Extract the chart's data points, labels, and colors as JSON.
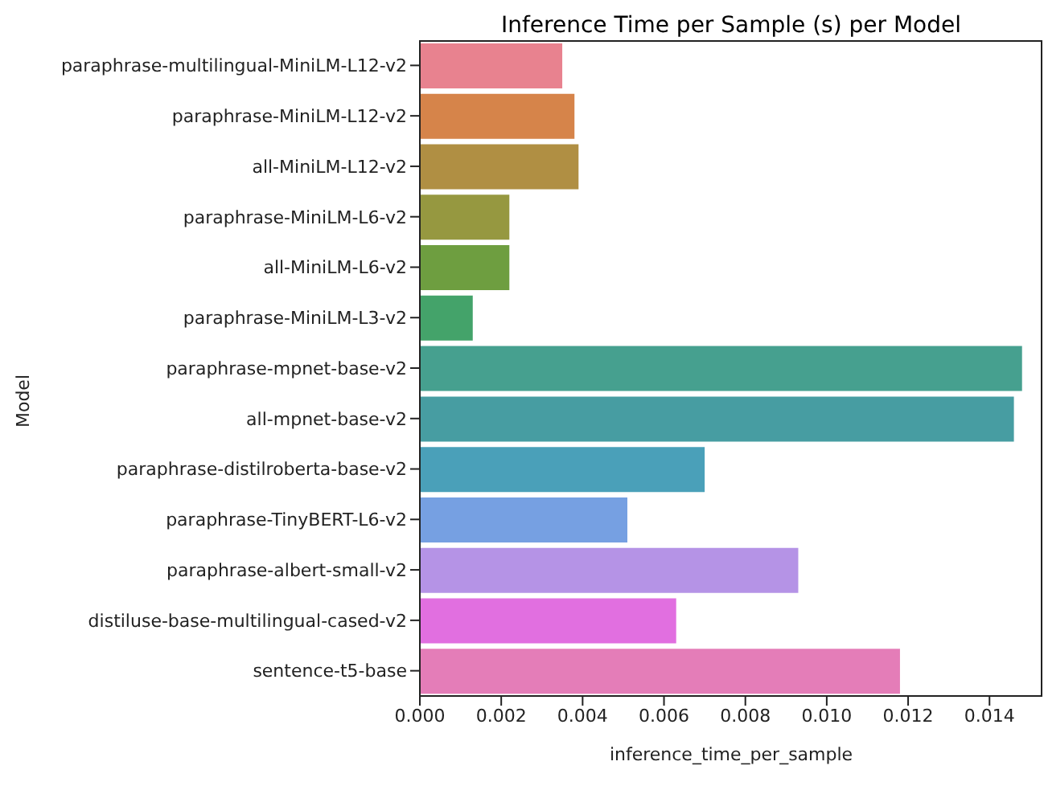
{
  "chart_data": {
    "type": "bar",
    "orientation": "horizontal",
    "title": "Inference Time per Sample (s) per Model",
    "xlabel": "inference_time_per_sample",
    "ylabel": "Model",
    "categories": [
      "paraphrase-multilingual-MiniLM-L12-v2",
      "paraphrase-MiniLM-L12-v2",
      "all-MiniLM-L12-v2",
      "paraphrase-MiniLM-L6-v2",
      "all-MiniLM-L6-v2",
      "paraphrase-MiniLM-L3-v2",
      "paraphrase-mpnet-base-v2",
      "all-mpnet-base-v2",
      "paraphrase-distilroberta-base-v2",
      "paraphrase-TinyBERT-L6-v2",
      "paraphrase-albert-small-v2",
      "distiluse-base-multilingual-cased-v2",
      "sentence-t5-base"
    ],
    "values": [
      0.0035,
      0.0038,
      0.0039,
      0.0022,
      0.0022,
      0.0013,
      0.0148,
      0.0146,
      0.007,
      0.0051,
      0.0093,
      0.0063,
      0.0118
    ],
    "colors": [
      "#e8828f",
      "#d6844a",
      "#b08f43",
      "#969840",
      "#6e9e40",
      "#44a36a",
      "#46a08f",
      "#479da2",
      "#4aa0b9",
      "#76a0e2",
      "#b593e6",
      "#e16fe0",
      "#e47db8"
    ],
    "xlim": [
      0,
      0.0153
    ],
    "xticks": [
      {
        "value": 0,
        "label": "0.000"
      },
      {
        "value": 0.002,
        "label": "0.002"
      },
      {
        "value": 0.004,
        "label": "0.004"
      },
      {
        "value": 0.006,
        "label": "0.006"
      },
      {
        "value": 0.008,
        "label": "0.008"
      },
      {
        "value": 0.01,
        "label": "0.010"
      },
      {
        "value": 0.012,
        "label": "0.012"
      },
      {
        "value": 0.014,
        "label": "0.014"
      }
    ],
    "grid": false,
    "legend": false
  }
}
